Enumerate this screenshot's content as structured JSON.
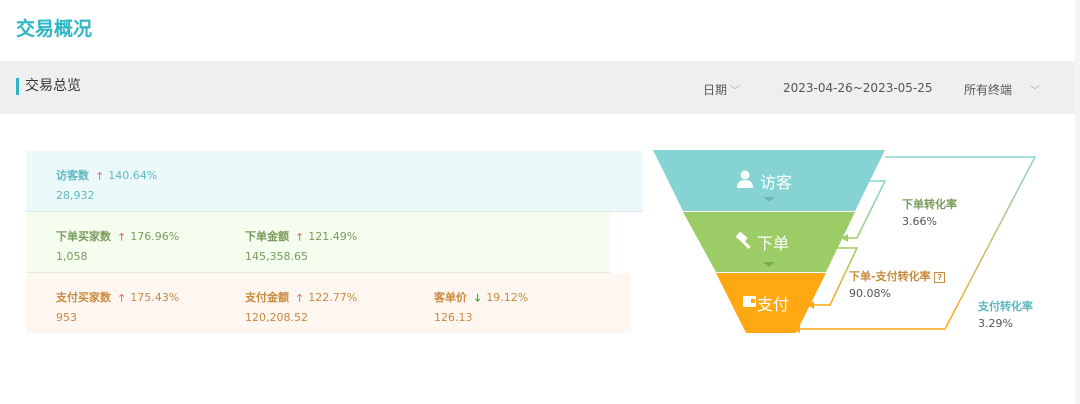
{
  "page_title": "交易概况",
  "section": {
    "title": "交易总览",
    "date_label": "日期",
    "date_range": "2023-04-26~2023-05-25",
    "terminal": "所有终端"
  },
  "rows": [
    {
      "metrics": [
        {
          "label": "访客数",
          "trend": "up",
          "change": "140.64%",
          "value": "28,932"
        }
      ]
    },
    {
      "metrics": [
        {
          "label": "下单买家数",
          "trend": "up",
          "change": "176.96%",
          "value": "1,058"
        },
        {
          "label": "下单金额",
          "trend": "up",
          "change": "121.49%",
          "value": "145,358.65"
        }
      ]
    },
    {
      "metrics": [
        {
          "label": "支付买家数",
          "trend": "up",
          "change": "175.43%",
          "value": "953"
        },
        {
          "label": "支付金额",
          "trend": "up",
          "change": "122.77%",
          "value": "120,208.52"
        },
        {
          "label": "客单价",
          "trend": "down",
          "change": "19.12%",
          "value": "126.13"
        }
      ]
    }
  ],
  "funnel": {
    "stages": [
      {
        "label": "访客",
        "icon": "user-icon",
        "color": "#86d3d3"
      },
      {
        "label": "下单",
        "icon": "gavel-icon",
        "color": "#9ccc65"
      },
      {
        "label": "支付",
        "icon": "wallet-icon",
        "color": "#ffa812"
      }
    ],
    "rates": [
      {
        "label": "下单转化率",
        "value": "3.66%",
        "color": "#789a5c"
      },
      {
        "label": "下单-支付转化率",
        "value": "90.08%",
        "color": "#c98a3d"
      },
      {
        "label": "支付转化率",
        "value": "3.29%",
        "color": "#5fb8c0"
      }
    ]
  }
}
